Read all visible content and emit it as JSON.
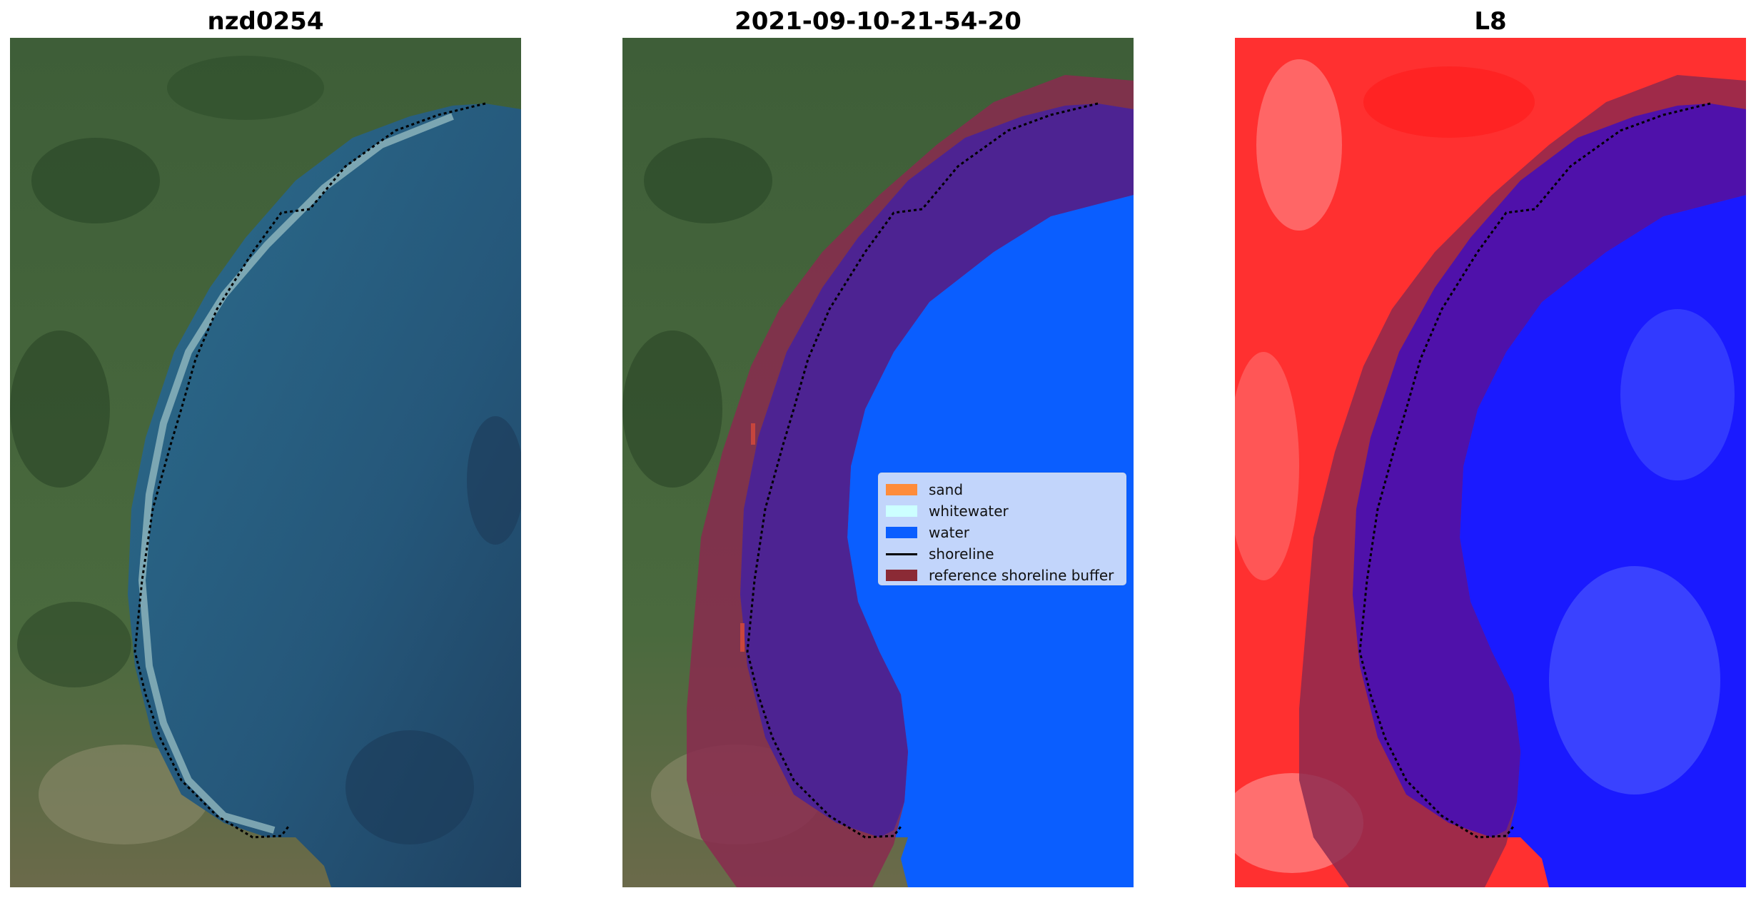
{
  "panels": [
    {
      "title": "nzd0254"
    },
    {
      "title": "2021-09-10-21-54-20"
    },
    {
      "title": "L8"
    }
  ],
  "legend": {
    "items": [
      {
        "label": "sand",
        "color": "#ff8c3a"
      },
      {
        "label": "whitewater",
        "color": "#ccffff"
      },
      {
        "label": "water",
        "color": "#0a5eff"
      },
      {
        "label": "shoreline",
        "color": "#000000"
      },
      {
        "label": "reference shoreline buffer",
        "color": "#8b2a35"
      }
    ]
  },
  "colors": {
    "land": "#3f5f3a",
    "sea": "#2a5a7a",
    "buffer": "#8a2a4f",
    "classified_water": "#0a5eff",
    "index_land": "#ff3030",
    "index_water": "#1a1aff"
  }
}
